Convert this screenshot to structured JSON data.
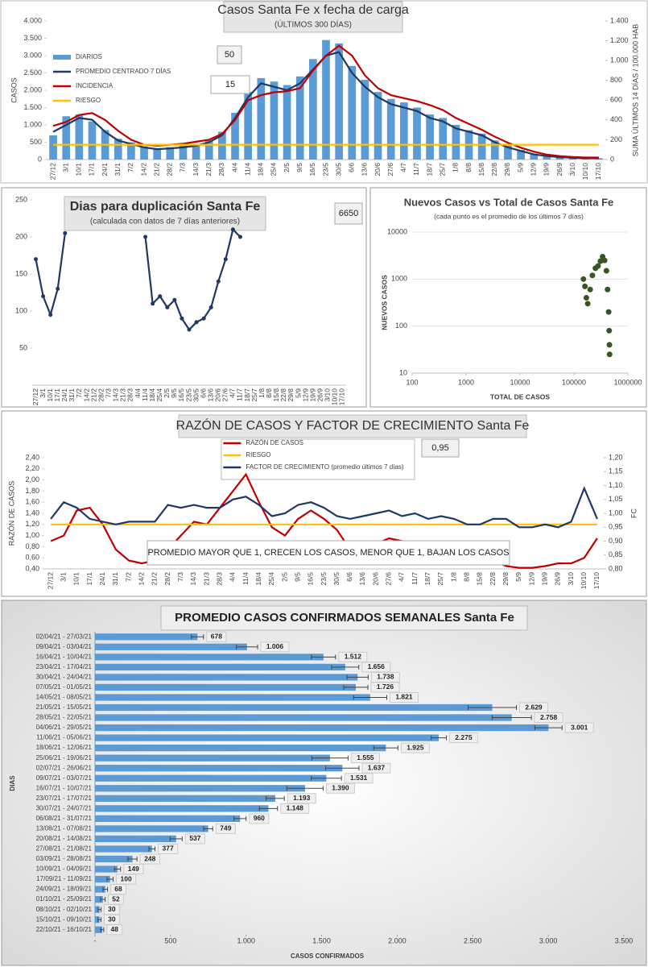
{
  "chart_data": [
    {
      "type": "combo",
      "title": "Casos Santa Fe x fecha de carga",
      "subtitle": "(ÚLTIMOS 300 DÍAS)",
      "y_label": "CASOS",
      "y2_label": "SUMA ÚLTIMOS 14 DÍAS / 100.000 HAB",
      "categories": [
        "27/12",
        "3/1",
        "10/1",
        "17/1",
        "24/1",
        "31/1",
        "7/2",
        "14/2",
        "21/2",
        "28/2",
        "7/3",
        "14/3",
        "21/3",
        "28/3",
        "4/4",
        "11/4",
        "18/4",
        "25/4",
        "2/5",
        "9/5",
        "16/5",
        "23/5",
        "30/5",
        "6/6",
        "13/6",
        "20/6",
        "27/6",
        "4/7",
        "11/7",
        "18/7",
        "25/7",
        "1/8",
        "8/8",
        "15/8",
        "22/8",
        "29/8",
        "5/9",
        "12/9",
        "19/9",
        "26/9",
        "3/10",
        "10/10",
        "17/10"
      ],
      "series": [
        {
          "name": "DIARIOS",
          "type": "bar",
          "color": "#5b9bd5",
          "values": [
            700,
            1250,
            1300,
            1100,
            850,
            600,
            500,
            380,
            330,
            360,
            400,
            450,
            550,
            800,
            1350,
            1950,
            2350,
            2250,
            2150,
            2400,
            2900,
            3450,
            3350,
            2700,
            2300,
            1950,
            1750,
            1650,
            1500,
            1300,
            1200,
            1000,
            850,
            750,
            550,
            400,
            280,
            170,
            110,
            80,
            60,
            45,
            40
          ]
        },
        {
          "name": "PROMEDIO CENTRADO 7 DÍAS",
          "type": "line",
          "color": "#1f3864",
          "values": [
            800,
            1000,
            1200,
            1150,
            800,
            550,
            450,
            350,
            300,
            320,
            350,
            400,
            500,
            700,
            1200,
            1800,
            2200,
            2100,
            2000,
            2200,
            2600,
            3000,
            3100,
            2500,
            2100,
            1800,
            1600,
            1500,
            1400,
            1200,
            1100,
            900,
            800,
            700,
            500,
            350,
            250,
            150,
            100,
            70,
            50,
            40,
            40
          ]
        },
        {
          "name": "INCIDENCIA",
          "type": "line",
          "axis": "y2",
          "color": "#c00000",
          "values": [
            340,
            380,
            450,
            470,
            400,
            290,
            200,
            150,
            140,
            150,
            160,
            180,
            200,
            260,
            400,
            600,
            650,
            680,
            690,
            720,
            900,
            1050,
            1150,
            1050,
            850,
            720,
            650,
            620,
            590,
            550,
            500,
            420,
            360,
            300,
            230,
            170,
            120,
            80,
            50,
            35,
            25,
            20,
            20
          ]
        },
        {
          "name": "RIESGO",
          "type": "line",
          "axis": "y2",
          "color": "#ffc000",
          "values": [
            150,
            150,
            150,
            150,
            150,
            150,
            150,
            150,
            150,
            150,
            150,
            150,
            150,
            150,
            150,
            150,
            150,
            150,
            150,
            150,
            150,
            150,
            150,
            150,
            150,
            150,
            150,
            150,
            150,
            150,
            150,
            150,
            150,
            150,
            150,
            150,
            150,
            150,
            150,
            150,
            150,
            150,
            150
          ]
        }
      ],
      "ylim": [
        0,
        4000
      ],
      "yticks": [
        0,
        500,
        {
          "value": 1000,
          "label": "1.000"
        },
        {
          "value": 1500,
          "label": "1.500"
        },
        {
          "value": 2000,
          "label": "2.000"
        },
        {
          "value": 2500,
          "label": "2.500"
        },
        {
          "value": 3000,
          "label": "3.000"
        },
        {
          "value": 3500,
          "label": "3.500"
        },
        {
          "value": 4000,
          "label": "4.000"
        }
      ],
      "y2lim": [
        0,
        1400
      ],
      "y2ticks": [
        0,
        200,
        400,
        600,
        800,
        {
          "value": 1000,
          "label": "1.000"
        },
        {
          "value": 1200,
          "label": "1.200"
        },
        {
          "value": 1400,
          "label": "1.400"
        }
      ],
      "legend": "upper left",
      "grid": false,
      "annotations": [
        "50",
        "15"
      ]
    },
    {
      "type": "line",
      "title": "Dias para duplicación Santa Fe",
      "subtitle": "(calculada con datos de 7 días anteriores)",
      "categories": [
        "27/12",
        "3/1",
        "10/1",
        "17/1",
        "24/1",
        "31/1",
        "7/2",
        "14/2",
        "21/2",
        "28/2",
        "7/3",
        "14/3",
        "21/3",
        "28/3",
        "4/4",
        "11/4",
        "18/4",
        "25/4",
        "2/5",
        "9/5",
        "16/5",
        "23/5",
        "30/5",
        "6/6",
        "13/6",
        "20/6",
        "27/6",
        "4/7",
        "11/7",
        "18/7",
        "25/7",
        "1/8",
        "8/8",
        "15/8",
        "22/8",
        "29/8",
        "5/9",
        "12/9",
        "19/9",
        "26/9",
        "3/10",
        "10/10",
        "17/10"
      ],
      "series": [
        {
          "type": "line",
          "color": "#1f3864",
          "markers": true,
          "values": [
            170,
            120,
            95,
            130,
            205,
            null,
            null,
            null,
            null,
            null,
            null,
            null,
            null,
            null,
            null,
            200,
            110,
            120,
            105,
            115,
            90,
            75,
            85,
            90,
            105,
            140,
            170,
            210,
            200,
            null,
            null,
            null,
            null,
            null,
            null,
            null,
            null,
            null,
            null,
            null,
            null,
            null,
            null
          ]
        }
      ],
      "ylim": [
        0,
        250
      ],
      "yticks": [
        50,
        100,
        150,
        200,
        250
      ],
      "grid": false,
      "annotations": [
        "6650"
      ]
    },
    {
      "type": "scatter",
      "title": "Nuevos Casos vs Total de Casos Santa Fe",
      "subtitle": "(cada punto es el promedio de los últimos 7 días)",
      "x_label": "TOTAL DE CASOS",
      "y_label": "NUEVOS CASOS",
      "color": "#375623",
      "log_x": true,
      "log_y": true,
      "x": [
        150000,
        160000,
        170000,
        180000,
        200000,
        220000,
        250000,
        280000,
        310000,
        340000,
        370000,
        400000,
        420000,
        440000,
        450000,
        455000,
        458000
      ],
      "values": [
        1000,
        700,
        400,
        300,
        600,
        1200,
        1700,
        1900,
        2400,
        3000,
        2500,
        1500,
        600,
        200,
        80,
        40,
        25
      ],
      "xlim": [
        100,
        1000000
      ],
      "xticks": [
        100,
        1000,
        10000,
        100000,
        1000000
      ],
      "ylim": [
        10,
        10000
      ],
      "yticks": [
        10,
        100,
        1000,
        10000
      ],
      "grid": true
    },
    {
      "type": "combo",
      "title": "RAZÓN DE CASOS Y FACTOR DE CRECIMIENTO Santa Fe",
      "y_label": "RAZÓN DE CASOS",
      "y2_label": "FC",
      "categories": [
        "27/12",
        "3/1",
        "10/1",
        "17/1",
        "24/1",
        "31/1",
        "7/2",
        "14/2",
        "21/2",
        "28/2",
        "7/3",
        "14/3",
        "21/3",
        "28/3",
        "4/4",
        "11/4",
        "18/4",
        "25/4",
        "2/5",
        "9/5",
        "16/5",
        "23/5",
        "30/5",
        "6/6",
        "13/6",
        "20/6",
        "27/6",
        "4/7",
        "11/7",
        "18/7",
        "25/7",
        "1/8",
        "8/8",
        "15/8",
        "22/8",
        "29/8",
        "5/9",
        "12/9",
        "19/9",
        "26/9",
        "3/10",
        "10/10",
        "17/10"
      ],
      "series": [
        {
          "name": "RAZÓN DE CASOS",
          "type": "line",
          "color": "#c00000",
          "values": [
            0.9,
            1.0,
            1.45,
            1.5,
            1.2,
            0.75,
            0.55,
            0.5,
            0.55,
            0.75,
            1.0,
            1.25,
            1.2,
            1.5,
            1.8,
            2.1,
            1.6,
            1.15,
            1.0,
            1.3,
            1.45,
            1.3,
            1.1,
            0.75,
            0.7,
            0.85,
            0.95,
            0.9,
            0.85,
            0.75,
            0.8,
            0.7,
            0.65,
            0.55,
            0.55,
            0.45,
            0.42,
            0.42,
            0.45,
            0.5,
            0.5,
            0.6,
            0.95
          ]
        },
        {
          "name": "RIESGO",
          "type": "line",
          "color": "#ffc000",
          "values": [
            1.2,
            1.2,
            1.2,
            1.2,
            1.2,
            1.2,
            1.2,
            1.2,
            1.2,
            1.2,
            1.2,
            1.2,
            1.2,
            1.2,
            1.2,
            1.2,
            1.2,
            1.2,
            1.2,
            1.2,
            1.2,
            1.2,
            1.2,
            1.2,
            1.2,
            1.2,
            1.2,
            1.2,
            1.2,
            1.2,
            1.2,
            1.2,
            1.2,
            1.2,
            1.2,
            1.2,
            1.2,
            1.2,
            1.2,
            1.2,
            1.2,
            1.2,
            1.2
          ]
        },
        {
          "name": "FACTOR DE CRECIMIENTO (promedio últimos 7 días)",
          "type": "line",
          "axis": "y2",
          "color": "#1f3864",
          "values": [
            0.98,
            1.04,
            1.02,
            0.98,
            0.97,
            0.96,
            0.97,
            0.97,
            0.97,
            1.03,
            1.02,
            1.03,
            1.02,
            1.02,
            1.05,
            1.06,
            1.03,
            0.99,
            1.0,
            1.03,
            1.04,
            1.02,
            0.99,
            0.98,
            0.99,
            1.0,
            1.01,
            0.99,
            1.0,
            0.98,
            0.99,
            0.98,
            0.96,
            0.96,
            0.98,
            0.98,
            0.95,
            0.95,
            0.96,
            0.95,
            0.97,
            1.09,
            0.98
          ]
        }
      ],
      "ylim": [
        0.4,
        2.4
      ],
      "yticks": [
        {
          "value": 0.4,
          "label": "0,40"
        },
        {
          "value": 0.6,
          "label": "0,60"
        },
        {
          "value": 0.8,
          "label": "0,80"
        },
        {
          "value": 1.0,
          "label": "1,00"
        },
        {
          "value": 1.2,
          "label": "1,20"
        },
        {
          "value": 1.4,
          "label": "1,40"
        },
        {
          "value": 1.6,
          "label": "1,60"
        },
        {
          "value": 1.8,
          "label": "1,80"
        },
        {
          "value": 2.0,
          "label": "2,00"
        },
        {
          "value": 2.2,
          "label": "2,20"
        },
        {
          "value": 2.4,
          "label": "2,40"
        }
      ],
      "y2lim": [
        0.8,
        1.2
      ],
      "y2ticks": [
        {
          "value": 0.8,
          "label": "0,80"
        },
        {
          "value": 0.85,
          "label": "0,85"
        },
        {
          "value": 0.9,
          "label": "0,90"
        },
        {
          "value": 0.95,
          "label": "0,95"
        },
        {
          "value": 1.0,
          "label": "1,00"
        },
        {
          "value": 1.05,
          "label": "1,05"
        },
        {
          "value": 1.1,
          "label": "1,10"
        },
        {
          "value": 1.15,
          "label": "1,15"
        },
        {
          "value": 1.2,
          "label": "1,20"
        }
      ],
      "legend": "upper center",
      "grid": false,
      "annotations": [
        "0,95",
        "PROMEDIO MAYOR QUE 1, CRECEN LOS CASOS, MENOR QUE 1, BAJAN LOS CASOS"
      ]
    },
    {
      "type": "hbar",
      "title": "PROMEDIO CASOS CONFIRMADOS SEMANALES Santa Fe",
      "x_label": "CASOS CONFIRMADOS",
      "y_label": "DIAS",
      "color": "#5b9bd5",
      "categories": [
        "02/04/21 - 27/03/21",
        "09/04/21 - 03/04/21",
        "16/04/21 - 10/04/21",
        "23/04/21 - 17/04/21",
        "30/04/21 - 24/04/21",
        "07/05/21 - 01/05/21",
        "14/05/21 - 08/05/21",
        "21/05/21 - 15/05/21",
        "28/05/21 - 22/05/21",
        "04/06/21 - 29/05/21",
        "11/06/21 - 05/06/21",
        "18/06/21 - 12/06/21",
        "25/06/21 - 19/06/21",
        "02/07/21 - 26/06/21",
        "09/07/21 - 03/07/21",
        "16/07/21 - 10/07/21",
        "23/07/21 - 17/07/21",
        "30/07/21 - 24/07/21",
        "06/08/21 - 31/07/21",
        "13/08/21 - 07/08/21",
        "20/08/21 - 14/08/21",
        "27/08/21 - 21/08/21",
        "03/09/21 - 28/08/21",
        "10/09/21 - 04/09/21",
        "17/09/21 - 11/09/21",
        "24/09/21 - 18/09/21",
        "01/10/21 - 25/09/21",
        "08/10/21 - 02/10/21",
        "15/10/21 - 09/10/21",
        "22/10/21 - 16/10/21"
      ],
      "values": [
        678,
        1006,
        1512,
        1656,
        1738,
        1726,
        1821,
        2629,
        2758,
        3001,
        2275,
        1925,
        1555,
        1637,
        1531,
        1390,
        1193,
        1148,
        960,
        749,
        537,
        377,
        248,
        149,
        100,
        68,
        52,
        30,
        30,
        48
      ],
      "value_labels": [
        "678",
        "1.006",
        "1.512",
        "1.656",
        "1.738",
        "1.726",
        "1.821",
        "2.629",
        "2.758",
        "3.001",
        "2.275",
        "1.925",
        "1.555",
        "1.637",
        "1.531",
        "1.390",
        "1.193",
        "1.148",
        "960",
        "749",
        "537",
        "377",
        "248",
        "149",
        "100",
        "68",
        "52",
        "30",
        "30",
        "48"
      ],
      "errors": [
        40,
        70,
        80,
        90,
        70,
        80,
        110,
        160,
        130,
        90,
        50,
        80,
        120,
        110,
        100,
        120,
        60,
        60,
        40,
        30,
        40,
        20,
        30,
        20,
        20,
        15,
        15,
        10,
        10,
        10
      ],
      "xlim": [
        0,
        3500
      ],
      "xticks": [
        {
          "value": 0,
          "label": "-"
        },
        500,
        {
          "value": 1000,
          "label": "1.000"
        },
        {
          "value": 1500,
          "label": "1.500"
        },
        {
          "value": 2000,
          "label": "2.000"
        },
        {
          "value": 2500,
          "label": "2.500"
        },
        {
          "value": 3000,
          "label": "3.000"
        },
        {
          "value": 3500,
          "label": "3.500"
        }
      ],
      "grid": false
    }
  ]
}
